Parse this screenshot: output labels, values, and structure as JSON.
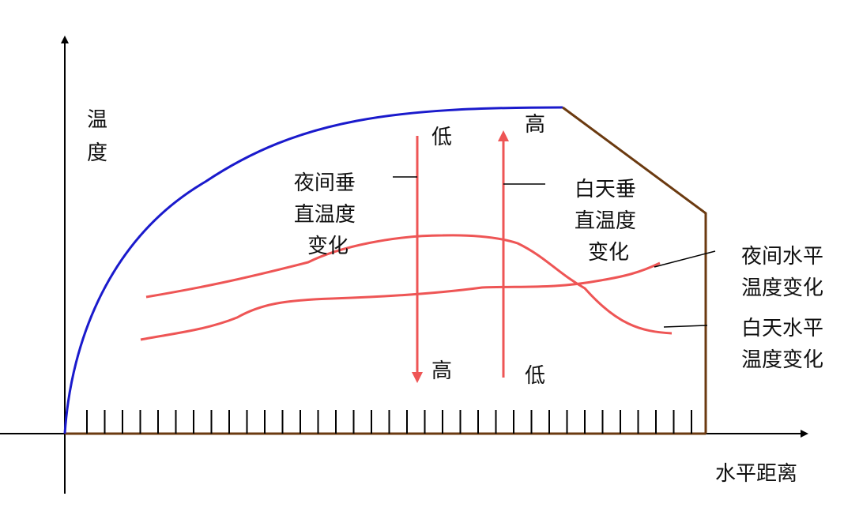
{
  "axes": {
    "y_label_line1": "温",
    "y_label_line2": "度",
    "x_label": "水平距离"
  },
  "arrows": {
    "night_top": "低",
    "night_bottom": "高",
    "day_top": "高",
    "day_bottom": "低"
  },
  "labels": {
    "night_vertical": [
      "夜间垂",
      "直温度",
      "变化"
    ],
    "day_vertical": [
      "白天垂",
      "直温度",
      "变化"
    ],
    "night_horizontal": [
      "夜间水平",
      "温度变化"
    ],
    "day_horizontal": [
      "白天水平",
      "温度变化"
    ]
  },
  "colors": {
    "roof_curve": "#1a1acc",
    "wall": "#6b3a10",
    "temperature": "#ee5555",
    "arrow": "#ee5555",
    "axis": "#000000"
  }
}
